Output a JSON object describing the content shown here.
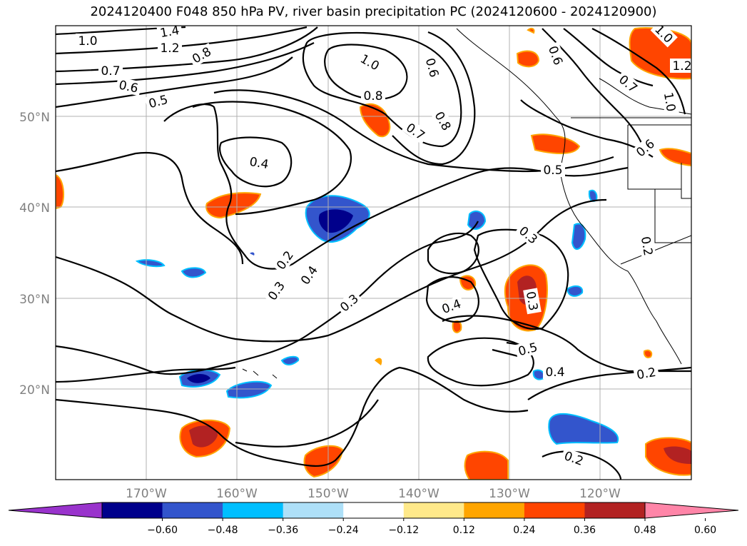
{
  "title": "2024120400 F048 850 hPa PV, river basin precipitation PC (2024120600 - 2024120900)",
  "map": {
    "lat_labels": [
      "50°N",
      "40°N",
      "30°N",
      "20°N"
    ],
    "lon_labels": [
      "170°W",
      "160°W",
      "150°W",
      "140°W",
      "130°W",
      "120°W"
    ],
    "contour_labels": [
      "1.4",
      "1.0",
      "1.2",
      "0.8",
      "0.7",
      "0.6",
      "0.5",
      "1.0",
      "0.8",
      "0.6",
      "0.8",
      "0.7",
      "0.6",
      "0.7",
      "1.0",
      "1.2",
      "1.0",
      "0.4",
      "0.5",
      "0.2",
      "0.4",
      "0.3",
      "0.3",
      "0.3",
      "0.4",
      "0.3",
      "0.5",
      "0.4",
      "0.2",
      "0.2",
      "0.6",
      "0.2"
    ]
  },
  "colorbar": {
    "ticks": [
      "−0.60",
      "−0.48",
      "−0.36",
      "−0.24",
      "−0.12",
      "0.12",
      "0.24",
      "0.36",
      "0.48",
      "0.60"
    ],
    "colors": [
      "#9933cc",
      "#00008b",
      "#3355cc",
      "#00bfff",
      "#aee0f8",
      "#ffffff",
      "#ffe98a",
      "#ffa500",
      "#ff4500",
      "#b22222",
      "#ff85a8"
    ]
  }
}
